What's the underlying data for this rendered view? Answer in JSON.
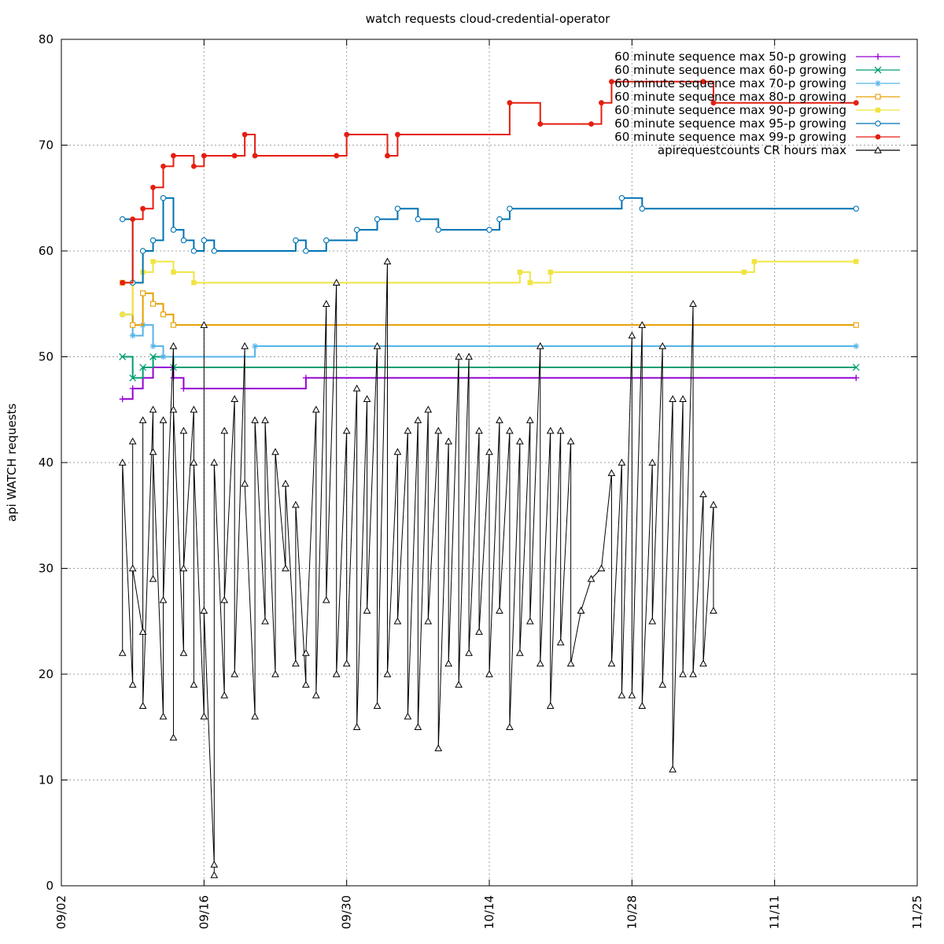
{
  "chart_data": {
    "type": "line",
    "title": "watch requests cloud-credential-operator",
    "xlabel": "",
    "ylabel": "api WATCH requests",
    "xlim": [
      "09/02",
      "11/25"
    ],
    "ylim": [
      0,
      80
    ],
    "xticks": [
      "09/02",
      "09/16",
      "09/30",
      "10/14",
      "10/28",
      "11/11",
      "11/25"
    ],
    "yticks": [
      0,
      10,
      20,
      30,
      40,
      50,
      60,
      70,
      80
    ],
    "grid": true,
    "legend_position": "top-right",
    "series": [
      {
        "name": "60 minute sequence max 50-p growing",
        "color": "#9400d3",
        "marker": "plus",
        "points": [
          [
            "09/08",
            46
          ],
          [
            "09/09",
            47
          ],
          [
            "09/10",
            48
          ],
          [
            "09/11",
            49
          ],
          [
            "09/13",
            48
          ],
          [
            "09/14",
            47
          ],
          [
            "09/26",
            48
          ],
          [
            "11/19",
            48
          ]
        ]
      },
      {
        "name": "60 minute sequence max 60-p growing",
        "color": "#009e73",
        "marker": "x",
        "points": [
          [
            "09/08",
            50
          ],
          [
            "09/09",
            48
          ],
          [
            "09/10",
            49
          ],
          [
            "09/11",
            50
          ],
          [
            "09/13",
            49
          ],
          [
            "11/19",
            49
          ]
        ]
      },
      {
        "name": "60 minute sequence max 70-p growing",
        "color": "#56b4e9",
        "marker": "star",
        "points": [
          [
            "09/08",
            54
          ],
          [
            "09/09",
            52
          ],
          [
            "09/10",
            53
          ],
          [
            "09/11",
            51
          ],
          [
            "09/12",
            50
          ],
          [
            "09/21",
            51
          ],
          [
            "11/19",
            51
          ]
        ]
      },
      {
        "name": "60 minute sequence max 80-p growing",
        "color": "#e69f00",
        "marker": "box",
        "points": [
          [
            "09/08",
            57
          ],
          [
            "09/09",
            53
          ],
          [
            "09/10",
            56
          ],
          [
            "09/11",
            55
          ],
          [
            "09/12",
            54
          ],
          [
            "09/13",
            53
          ],
          [
            "11/19",
            53
          ]
        ]
      },
      {
        "name": "60 minute sequence max 90-p growing",
        "color": "#f0e442",
        "marker": "filled-box",
        "points": [
          [
            "09/08",
            54
          ],
          [
            "09/09",
            57
          ],
          [
            "09/10",
            58
          ],
          [
            "09/11",
            59
          ],
          [
            "09/13",
            58
          ],
          [
            "09/15",
            57
          ],
          [
            "10/17",
            58
          ],
          [
            "10/18",
            57
          ],
          [
            "10/20",
            58
          ],
          [
            "11/08",
            58
          ],
          [
            "11/09",
            59
          ],
          [
            "11/19",
            59
          ]
        ]
      },
      {
        "name": "60 minute sequence max 95-p growing",
        "color": "#0072b2",
        "marker": "circle",
        "points": [
          [
            "09/08",
            63
          ],
          [
            "09/09",
            57
          ],
          [
            "09/10",
            60
          ],
          [
            "09/11",
            61
          ],
          [
            "09/12",
            65
          ],
          [
            "09/13",
            62
          ],
          [
            "09/14",
            61
          ],
          [
            "09/15",
            60
          ],
          [
            "09/16",
            61
          ],
          [
            "09/17",
            60
          ],
          [
            "09/25",
            61
          ],
          [
            "09/26",
            60
          ],
          [
            "09/28",
            61
          ],
          [
            "10/01",
            62
          ],
          [
            "10/03",
            63
          ],
          [
            "10/05",
            64
          ],
          [
            "10/07",
            63
          ],
          [
            "10/09",
            62
          ],
          [
            "10/14",
            62
          ],
          [
            "10/15",
            63
          ],
          [
            "10/16",
            64
          ],
          [
            "10/27",
            65
          ],
          [
            "10/29",
            64
          ],
          [
            "11/19",
            64
          ]
        ]
      },
      {
        "name": "60 minute sequence max 99-p growing",
        "color": "#e51e10",
        "marker": "filled-circle",
        "points": [
          [
            "09/08",
            57
          ],
          [
            "09/09",
            63
          ],
          [
            "09/10",
            64
          ],
          [
            "09/11",
            66
          ],
          [
            "09/12",
            68
          ],
          [
            "09/13",
            69
          ],
          [
            "09/15",
            68
          ],
          [
            "09/16",
            69
          ],
          [
            "09/19",
            69
          ],
          [
            "09/20",
            71
          ],
          [
            "09/21",
            69
          ],
          [
            "09/29",
            69
          ],
          [
            "09/30",
            71
          ],
          [
            "10/04",
            69
          ],
          [
            "10/05",
            71
          ],
          [
            "10/16",
            74
          ],
          [
            "10/19",
            72
          ],
          [
            "10/24",
            72
          ],
          [
            "10/25",
            74
          ],
          [
            "10/26",
            76
          ],
          [
            "11/04",
            76
          ],
          [
            "11/05",
            74
          ],
          [
            "11/19",
            74
          ]
        ]
      },
      {
        "name": "apirequestcounts CR hours max",
        "color": "#000000",
        "marker": "triangle",
        "points": [
          [
            "09/08",
            22
          ],
          [
            "09/08",
            40
          ],
          [
            "09/09",
            19
          ],
          [
            "09/09",
            42
          ],
          [
            "09/09",
            30
          ],
          [
            "09/10",
            24
          ],
          [
            "09/10",
            44
          ],
          [
            "09/10",
            17
          ],
          [
            "09/11",
            45
          ],
          [
            "09/11",
            29
          ],
          [
            "09/11",
            41
          ],
          [
            "09/12",
            16
          ],
          [
            "09/12",
            44
          ],
          [
            "09/12",
            27
          ],
          [
            "09/13",
            51
          ],
          [
            "09/13",
            14
          ],
          [
            "09/13",
            45
          ],
          [
            "09/14",
            22
          ],
          [
            "09/14",
            43
          ],
          [
            "09/14",
            30
          ],
          [
            "09/15",
            45
          ],
          [
            "09/15",
            19
          ],
          [
            "09/15",
            40
          ],
          [
            "09/16",
            16
          ],
          [
            "09/16",
            53
          ],
          [
            "09/16",
            26
          ],
          [
            "09/17",
            2
          ],
          [
            "09/17",
            1
          ],
          [
            "09/17",
            40
          ],
          [
            "09/18",
            18
          ],
          [
            "09/18",
            43
          ],
          [
            "09/18",
            27
          ],
          [
            "09/19",
            46
          ],
          [
            "09/19",
            20
          ],
          [
            "09/20",
            51
          ],
          [
            "09/20",
            38
          ],
          [
            "09/21",
            16
          ],
          [
            "09/21",
            44
          ],
          [
            "09/22",
            25
          ],
          [
            "09/22",
            44
          ],
          [
            "09/23",
            20
          ],
          [
            "09/23",
            41
          ],
          [
            "09/24",
            30
          ],
          [
            "09/24",
            38
          ],
          [
            "09/25",
            21
          ],
          [
            "09/25",
            36
          ],
          [
            "09/26",
            19
          ],
          [
            "09/26",
            22
          ],
          [
            "09/27",
            45
          ],
          [
            "09/27",
            18
          ],
          [
            "09/28",
            55
          ],
          [
            "09/28",
            27
          ],
          [
            "09/29",
            57
          ],
          [
            "09/29",
            20
          ],
          [
            "09/30",
            43
          ],
          [
            "09/30",
            21
          ],
          [
            "10/01",
            47
          ],
          [
            "10/01",
            15
          ],
          [
            "10/02",
            46
          ],
          [
            "10/02",
            26
          ],
          [
            "10/03",
            51
          ],
          [
            "10/03",
            17
          ],
          [
            "10/04",
            59
          ],
          [
            "10/04",
            20
          ],
          [
            "10/05",
            41
          ],
          [
            "10/05",
            25
          ],
          [
            "10/06",
            43
          ],
          [
            "10/06",
            16
          ],
          [
            "10/07",
            44
          ],
          [
            "10/07",
            15
          ],
          [
            "10/08",
            45
          ],
          [
            "10/08",
            25
          ],
          [
            "10/09",
            43
          ],
          [
            "10/09",
            13
          ],
          [
            "10/10",
            42
          ],
          [
            "10/10",
            21
          ],
          [
            "10/11",
            50
          ],
          [
            "10/11",
            19
          ],
          [
            "10/12",
            50
          ],
          [
            "10/12",
            22
          ],
          [
            "10/13",
            43
          ],
          [
            "10/13",
            24
          ],
          [
            "10/14",
            41
          ],
          [
            "10/14",
            20
          ],
          [
            "10/15",
            44
          ],
          [
            "10/15",
            26
          ],
          [
            "10/16",
            43
          ],
          [
            "10/16",
            15
          ],
          [
            "10/17",
            42
          ],
          [
            "10/17",
            22
          ],
          [
            "10/18",
            44
          ],
          [
            "10/18",
            25
          ],
          [
            "10/19",
            51
          ],
          [
            "10/19",
            21
          ],
          [
            "10/20",
            43
          ],
          [
            "10/20",
            17
          ],
          [
            "10/21",
            43
          ],
          [
            "10/21",
            23
          ],
          [
            "10/22",
            42
          ],
          [
            "10/22",
            21
          ],
          [
            "10/23",
            26
          ],
          [
            "10/23",
            26
          ],
          [
            "10/24",
            29
          ],
          [
            "10/25",
            30
          ],
          [
            "10/26",
            39
          ],
          [
            "10/26",
            21
          ],
          [
            "10/27",
            40
          ],
          [
            "10/27",
            18
          ],
          [
            "10/28",
            52
          ],
          [
            "10/28",
            18
          ],
          [
            "10/29",
            53
          ],
          [
            "10/29",
            17
          ],
          [
            "10/30",
            40
          ],
          [
            "10/30",
            25
          ],
          [
            "10/31",
            51
          ],
          [
            "10/31",
            19
          ],
          [
            "11/01",
            46
          ],
          [
            "11/01",
            11
          ],
          [
            "11/02",
            46
          ],
          [
            "11/02",
            20
          ],
          [
            "11/03",
            55
          ],
          [
            "11/03",
            20
          ],
          [
            "11/04",
            37
          ],
          [
            "11/04",
            21
          ],
          [
            "11/05",
            36
          ],
          [
            "11/05",
            26
          ]
        ]
      }
    ]
  }
}
